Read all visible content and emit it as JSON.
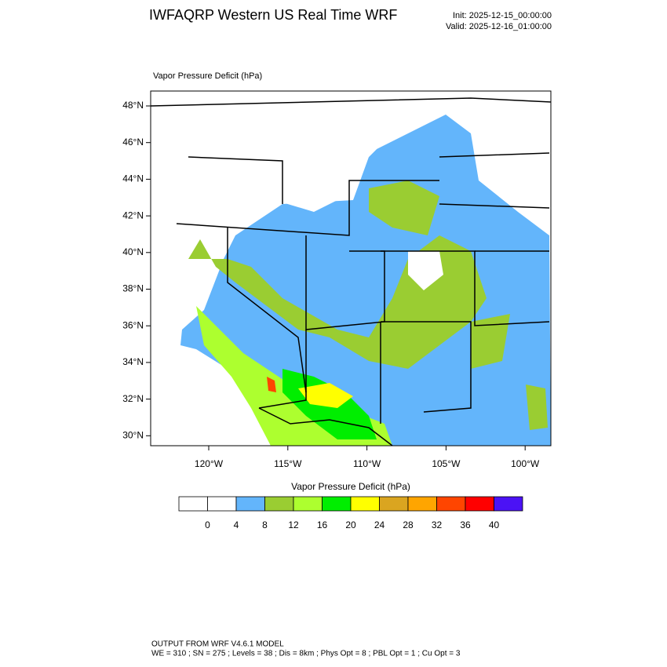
{
  "header": {
    "title": "IWFAQRP Western US Real Time WRF",
    "init": "Init: 2025-12-15_00:00:00",
    "valid": "Valid: 2025-12-16_01:00:00"
  },
  "map": {
    "subtitle": "Vapor Pressure Deficit   (hPa)",
    "lat_labels": [
      "48°N",
      "46°N",
      "44°N",
      "42°N",
      "40°N",
      "38°N",
      "36°N",
      "34°N",
      "32°N",
      "30°N"
    ],
    "lon_labels": [
      "120°W",
      "115°W",
      "110°W",
      "105°W",
      "100°W"
    ]
  },
  "colorbar": {
    "title": "Vapor Pressure Deficit  (hPa)",
    "colors": [
      "#ffffff",
      "#ffffff",
      "#63b5fb",
      "#9acd32",
      "#adff2f",
      "#00ee00",
      "#ffff00",
      "#daa520",
      "#ffa500",
      "#ff4500",
      "#ff0000",
      "#4b12f5"
    ],
    "labels": [
      0,
      4,
      8,
      12,
      16,
      20,
      24,
      28,
      32,
      36,
      40
    ]
  },
  "footer": {
    "line1": "OUTPUT FROM WRF V4.6.1 MODEL",
    "line2": "WE = 310 ; SN = 275 ; Levels = 38 ; Dis = 8km ; Phys Opt = 8 ; PBL Opt = 1 ; Cu Opt = 3"
  }
}
